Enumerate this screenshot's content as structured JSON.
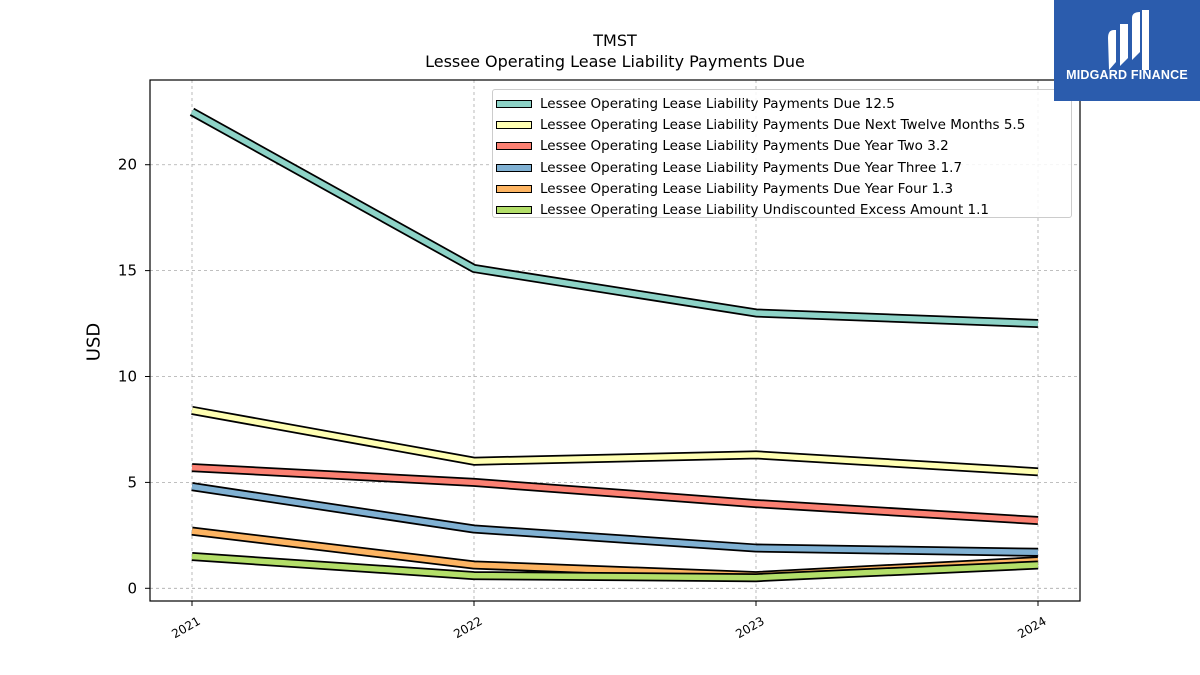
{
  "chart_data": {
    "type": "line",
    "title": "TMST",
    "subtitle": "Lessee Operating Lease Liability Payments Due",
    "xlabel": "",
    "ylabel": "USD",
    "categories": [
      "2021",
      "2022",
      "2023",
      "2024"
    ],
    "ylim": [
      -0.6,
      24
    ],
    "yticks": [
      0,
      5,
      10,
      15,
      20
    ],
    "grid": true,
    "legend_position": "top-right",
    "series": [
      {
        "name": "Lessee Operating Lease Liability Payments Due",
        "legend_label": "Lessee Operating Lease Liability Payments Due  12.5",
        "color": "#8dd3c7",
        "values": [
          22.5,
          15.1,
          13.0,
          12.5
        ]
      },
      {
        "name": "Lessee Operating Lease Liability Payments Due Next Twelve Months",
        "legend_label": "Lessee Operating Lease Liability Payments Due Next Twelve Months  5.5",
        "color": "#ffffb3",
        "values": [
          8.4,
          6.0,
          6.3,
          5.5
        ]
      },
      {
        "name": "Lessee Operating Lease Liability Payments Due Year Two",
        "legend_label": "Lessee Operating Lease Liability Payments Due Year Two  3.2",
        "color": "#fb8072",
        "values": [
          5.7,
          5.0,
          4.0,
          3.2
        ]
      },
      {
        "name": "Lessee Operating Lease Liability Payments Due Year Three",
        "legend_label": "Lessee Operating Lease Liability Payments Due Year Three  1.7",
        "color": "#80b1d3",
        "values": [
          4.8,
          2.8,
          1.9,
          1.7
        ]
      },
      {
        "name": "Lessee Operating Lease Liability Payments Due Year Four",
        "legend_label": "Lessee Operating Lease Liability Payments Due Year Four  1.3",
        "color": "#fdb462",
        "values": [
          2.7,
          1.1,
          0.6,
          1.3
        ]
      },
      {
        "name": "Lessee Operating Lease Liability Undiscounted Excess Amount",
        "legend_label": "Lessee Operating Lease Liability Undiscounted Excess Amount  1.1",
        "color": "#b3de69",
        "values": [
          1.5,
          0.6,
          0.5,
          1.1
        ]
      }
    ]
  },
  "logo": {
    "text": "MIDGARD FINANCE",
    "color": "#2b5cad"
  }
}
